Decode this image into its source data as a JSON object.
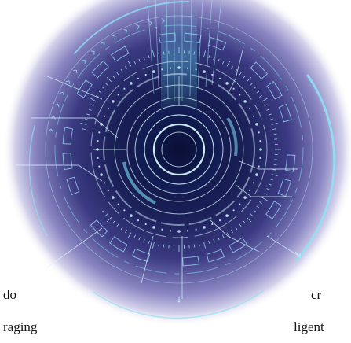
{
  "captions": {
    "left_line_1": "do",
    "left_line_2": "raging",
    "right_line_1": "cr",
    "right_line_2": "ligent"
  },
  "colors": {
    "core_dark": "#0c1440",
    "mid_purple": "#3f3d85",
    "outer_glow": "#8e89c6",
    "cyan_accent": "#6fd8ef",
    "line_light": "#cdefff",
    "page_background": "#ffffff",
    "caption_text": "#141414"
  },
  "illustration": {
    "icon": "futuristic-hud-circle-icon"
  }
}
